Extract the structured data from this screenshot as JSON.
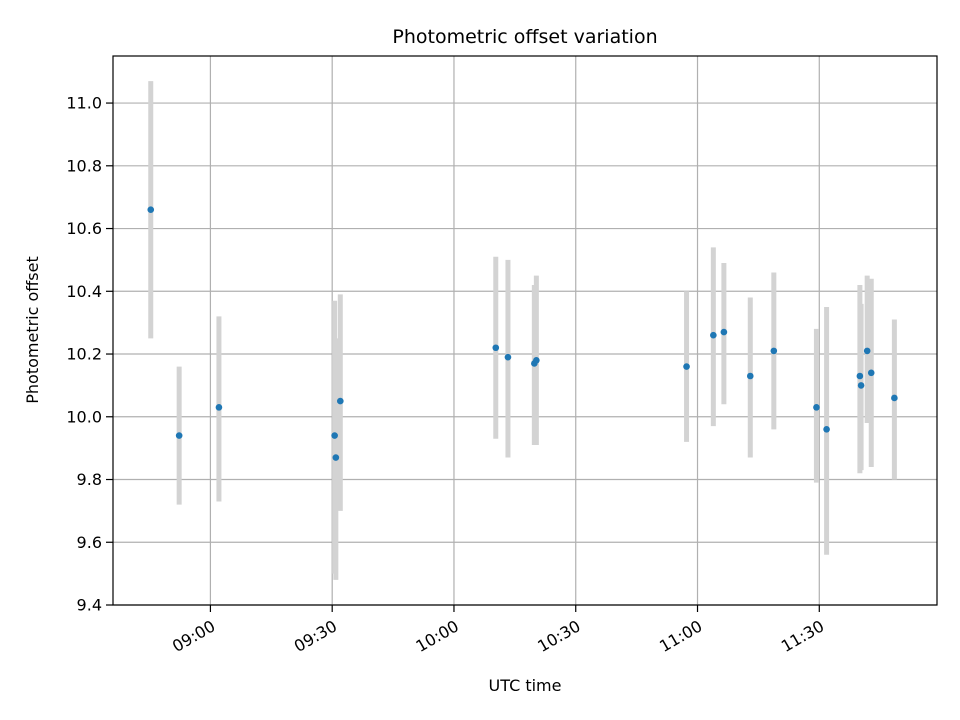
{
  "chart_data": {
    "type": "scatter",
    "title": "Photometric offset variation",
    "xlabel": "UTC time",
    "ylabel": "Photometric offset",
    "grid": true,
    "x_unit": "minutes after 08:00 UTC",
    "xlim": [
      36,
      239
    ],
    "ylim": [
      9.4,
      11.15
    ],
    "x_ticks": [
      {
        "value": 60,
        "label": "09:00"
      },
      {
        "value": 90,
        "label": "09:30"
      },
      {
        "value": 120,
        "label": "10:00"
      },
      {
        "value": 150,
        "label": "10:30"
      },
      {
        "value": 180,
        "label": "11:00"
      },
      {
        "value": 210,
        "label": "11:30"
      }
    ],
    "y_ticks": [
      {
        "value": 9.4,
        "label": "9.4"
      },
      {
        "value": 9.6,
        "label": "9.6"
      },
      {
        "value": 9.8,
        "label": "9.8"
      },
      {
        "value": 10.0,
        "label": "10.0"
      },
      {
        "value": 10.2,
        "label": "10.2"
      },
      {
        "value": 10.4,
        "label": "10.4"
      },
      {
        "value": 10.6,
        "label": "10.6"
      },
      {
        "value": 10.8,
        "label": "10.8"
      },
      {
        "value": 11.0,
        "label": "11.0"
      }
    ],
    "colors": {
      "point": "#1f77b4",
      "errorbar": "#d3d3d3",
      "grid": "#b0b0b0",
      "axis": "#000000"
    },
    "points": [
      {
        "x": 45.3,
        "y": 10.66,
        "ylow": 10.25,
        "yhigh": 11.07
      },
      {
        "x": 52.3,
        "y": 9.94,
        "ylow": 9.72,
        "yhigh": 10.16
      },
      {
        "x": 62.1,
        "y": 10.03,
        "ylow": 9.73,
        "yhigh": 10.32
      },
      {
        "x": 90.6,
        "y": 9.94,
        "ylow": 9.5,
        "yhigh": 10.37
      },
      {
        "x": 90.9,
        "y": 9.87,
        "ylow": 9.48,
        "yhigh": 10.25
      },
      {
        "x": 92.0,
        "y": 10.05,
        "ylow": 9.7,
        "yhigh": 10.39
      },
      {
        "x": 130.3,
        "y": 10.22,
        "ylow": 9.93,
        "yhigh": 10.51
      },
      {
        "x": 133.3,
        "y": 10.19,
        "ylow": 9.87,
        "yhigh": 10.5
      },
      {
        "x": 139.8,
        "y": 10.17,
        "ylow": 9.91,
        "yhigh": 10.42
      },
      {
        "x": 140.3,
        "y": 10.18,
        "ylow": 9.91,
        "yhigh": 10.45
      },
      {
        "x": 177.3,
        "y": 10.16,
        "ylow": 9.92,
        "yhigh": 10.4
      },
      {
        "x": 183.9,
        "y": 10.26,
        "ylow": 9.97,
        "yhigh": 10.54
      },
      {
        "x": 186.5,
        "y": 10.27,
        "ylow": 10.04,
        "yhigh": 10.49
      },
      {
        "x": 193.0,
        "y": 10.13,
        "ylow": 9.87,
        "yhigh": 10.38
      },
      {
        "x": 198.8,
        "y": 10.21,
        "ylow": 9.96,
        "yhigh": 10.46
      },
      {
        "x": 209.3,
        "y": 10.03,
        "ylow": 9.79,
        "yhigh": 10.28
      },
      {
        "x": 211.8,
        "y": 9.96,
        "ylow": 9.56,
        "yhigh": 10.35
      },
      {
        "x": 220.0,
        "y": 10.13,
        "ylow": 9.82,
        "yhigh": 10.42
      },
      {
        "x": 220.3,
        "y": 10.1,
        "ylow": 9.83,
        "yhigh": 10.36
      },
      {
        "x": 221.8,
        "y": 10.21,
        "ylow": 9.98,
        "yhigh": 10.45
      },
      {
        "x": 222.8,
        "y": 10.14,
        "ylow": 9.84,
        "yhigh": 10.44
      },
      {
        "x": 228.5,
        "y": 10.06,
        "ylow": 9.8,
        "yhigh": 10.31
      }
    ]
  }
}
